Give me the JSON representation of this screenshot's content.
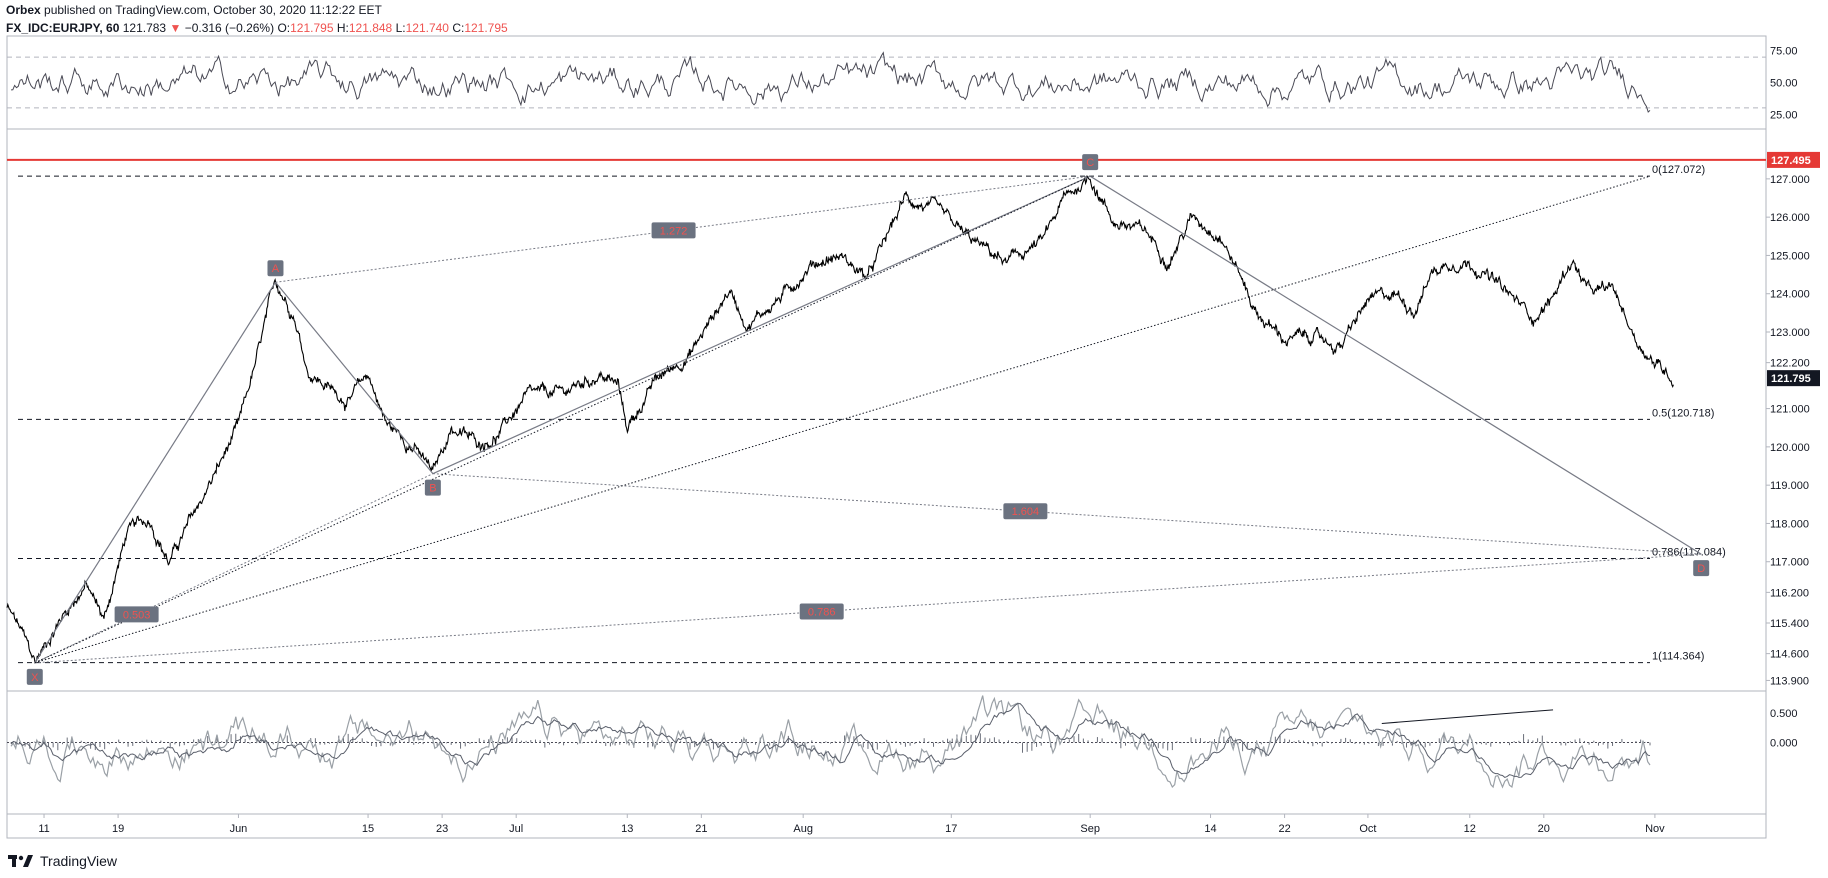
{
  "header": {
    "author": "Orbex",
    "published": "published on TradingView.com, October 30, 2020 11:12:22 EET",
    "symbol": "FX_IDC:EURJPY, 60",
    "last": "121.783",
    "change_arrow": "▼",
    "change": "−0.316 (−0.26%)",
    "o_label": "O:",
    "o_value": "121.795",
    "h_label": "H:",
    "h_value": "121.848",
    "l_label": "L:",
    "l_value": "121.740",
    "c_label": "C:",
    "c_value": "121.795"
  },
  "footer": {
    "brand": "TradingView"
  },
  "colors": {
    "red": "#ef5350",
    "line_red": "#e53935",
    "badge": "#6b7280",
    "badge_text": "#ef5350",
    "price_badge": "#131722"
  },
  "chart_data": [
    {
      "type": "line",
      "panel": "rsi",
      "yaxis_ticks": [
        75,
        50,
        25
      ],
      "tick_labels": [
        "75.00",
        "50.00",
        "25.00"
      ],
      "reference_levels": [
        70,
        30
      ],
      "ylim": [
        15,
        85
      ]
    },
    {
      "type": "line",
      "panel": "price",
      "symbol": "EURJPY",
      "x_ticks": [
        {
          "day": 0,
          "label": "11"
        },
        {
          "day": 8,
          "label": "19"
        },
        {
          "day": 21,
          "label": "Jun"
        },
        {
          "day": 35,
          "label": "15"
        },
        {
          "day": 43,
          "label": "23"
        },
        {
          "day": 51,
          "label": "Jul"
        },
        {
          "day": 63,
          "label": "13"
        },
        {
          "day": 71,
          "label": "21"
        },
        {
          "day": 82,
          "label": "Aug"
        },
        {
          "day": 98,
          "label": "17"
        },
        {
          "day": 113,
          "label": "Sep"
        },
        {
          "day": 126,
          "label": "14"
        },
        {
          "day": 134,
          "label": "22"
        },
        {
          "day": 143,
          "label": "Oct"
        },
        {
          "day": 154,
          "label": "12"
        },
        {
          "day": 162,
          "label": "20"
        },
        {
          "day": 174,
          "label": "Nov"
        }
      ],
      "xlim": [
        -4,
        186
      ],
      "ylim": [
        113.65,
        128.25
      ],
      "y_ticks": [
        "127.000",
        "126.000",
        "125.000",
        "124.000",
        "123.000",
        "122.200",
        "121.000",
        "120.000",
        "119.000",
        "118.000",
        "117.000",
        "116.200",
        "115.400",
        "114.600",
        "113.900"
      ],
      "price_keypoints": [
        {
          "day": -4,
          "price": 115.8
        },
        {
          "day": -2.5,
          "price": 115.2
        },
        {
          "day": -1,
          "price": 114.36
        },
        {
          "day": 2,
          "price": 115.6
        },
        {
          "day": 4.5,
          "price": 116.4
        },
        {
          "day": 6.5,
          "price": 115.5
        },
        {
          "day": 9,
          "price": 117.8
        },
        {
          "day": 11.5,
          "price": 118.1
        },
        {
          "day": 13.5,
          "price": 117.0
        },
        {
          "day": 17,
          "price": 118.6
        },
        {
          "day": 21,
          "price": 120.5
        },
        {
          "day": 23,
          "price": 122.3
        },
        {
          "day": 25,
          "price": 124.3
        },
        {
          "day": 27,
          "price": 123.5
        },
        {
          "day": 28.5,
          "price": 122.0
        },
        {
          "day": 31,
          "price": 121.5
        },
        {
          "day": 33,
          "price": 121.2
        },
        {
          "day": 35,
          "price": 121.9
        },
        {
          "day": 37,
          "price": 120.6
        },
        {
          "day": 40,
          "price": 120.0
        },
        {
          "day": 42,
          "price": 119.3
        },
        {
          "day": 44,
          "price": 120.5
        },
        {
          "day": 47,
          "price": 120.1
        },
        {
          "day": 49,
          "price": 120.3
        },
        {
          "day": 52,
          "price": 121.3
        },
        {
          "day": 56,
          "price": 121.4
        },
        {
          "day": 60,
          "price": 121.9
        },
        {
          "day": 62,
          "price": 121.6
        },
        {
          "day": 63,
          "price": 120.5
        },
        {
          "day": 66,
          "price": 121.7
        },
        {
          "day": 70,
          "price": 122.5
        },
        {
          "day": 74,
          "price": 124.1
        },
        {
          "day": 76,
          "price": 123.2
        },
        {
          "day": 80,
          "price": 124.0
        },
        {
          "day": 83,
          "price": 124.8
        },
        {
          "day": 86,
          "price": 125.0
        },
        {
          "day": 89,
          "price": 124.4
        },
        {
          "day": 93,
          "price": 126.5
        },
        {
          "day": 96,
          "price": 126.2
        },
        {
          "day": 100,
          "price": 125.4
        },
        {
          "day": 104,
          "price": 124.8
        },
        {
          "day": 108,
          "price": 125.4
        },
        {
          "day": 110,
          "price": 126.4
        },
        {
          "day": 113,
          "price": 127.07
        },
        {
          "day": 115.5,
          "price": 125.9
        },
        {
          "day": 119,
          "price": 125.6
        },
        {
          "day": 121.5,
          "price": 124.9
        },
        {
          "day": 124,
          "price": 126.0
        },
        {
          "day": 127,
          "price": 125.6
        },
        {
          "day": 129,
          "price": 124.6
        },
        {
          "day": 131,
          "price": 123.5
        },
        {
          "day": 134,
          "price": 122.8
        },
        {
          "day": 137,
          "price": 122.9
        },
        {
          "day": 140,
          "price": 122.6
        },
        {
          "day": 143,
          "price": 123.8
        },
        {
          "day": 146,
          "price": 124.0
        },
        {
          "day": 148,
          "price": 123.6
        },
        {
          "day": 150,
          "price": 124.6
        },
        {
          "day": 153,
          "price": 124.9
        },
        {
          "day": 155,
          "price": 124.7
        },
        {
          "day": 158,
          "price": 124.0
        },
        {
          "day": 161,
          "price": 123.4
        },
        {
          "day": 163,
          "price": 123.9
        },
        {
          "day": 165,
          "price": 124.9
        },
        {
          "day": 167,
          "price": 124.0
        },
        {
          "day": 169.5,
          "price": 124.1
        },
        {
          "day": 172,
          "price": 122.8
        },
        {
          "day": 174,
          "price": 122.2
        },
        {
          "day": 176,
          "price": 121.8
        }
      ],
      "current_price_label": "121.795",
      "horizontal_line_label": "127.495",
      "horizontal_line_price": 127.495,
      "fib_levels": [
        {
          "label": "0(127.072)",
          "price": 127.072
        },
        {
          "label": "0.5(120.718)",
          "price": 120.718
        },
        {
          "label": "0.786(117.084)",
          "price": 117.084
        },
        {
          "label": "1(114.364)",
          "price": 114.364
        }
      ],
      "pattern_points": [
        {
          "id": "X",
          "label": "X",
          "day": -1,
          "price": 114.36
        },
        {
          "id": "A",
          "label": "A",
          "day": 25,
          "price": 124.3
        },
        {
          "id": "B",
          "label": "B",
          "day": 42,
          "price": 119.3
        },
        {
          "id": "C",
          "label": "C",
          "day": 113,
          "price": 127.07
        },
        {
          "id": "D",
          "label": "D",
          "day": 179,
          "price": 117.2
        }
      ],
      "ratio_labels": [
        {
          "label": "1.272",
          "day": 68
        },
        {
          "label": "0.503",
          "day": 10
        },
        {
          "label": "1.604",
          "day": 106
        },
        {
          "label": "0.786",
          "day": 84
        }
      ]
    },
    {
      "type": "line",
      "panel": "oscillator",
      "tick_labels": [
        "0.500",
        "0.000"
      ],
      "ylim": [
        -0.8,
        0.85
      ]
    }
  ]
}
